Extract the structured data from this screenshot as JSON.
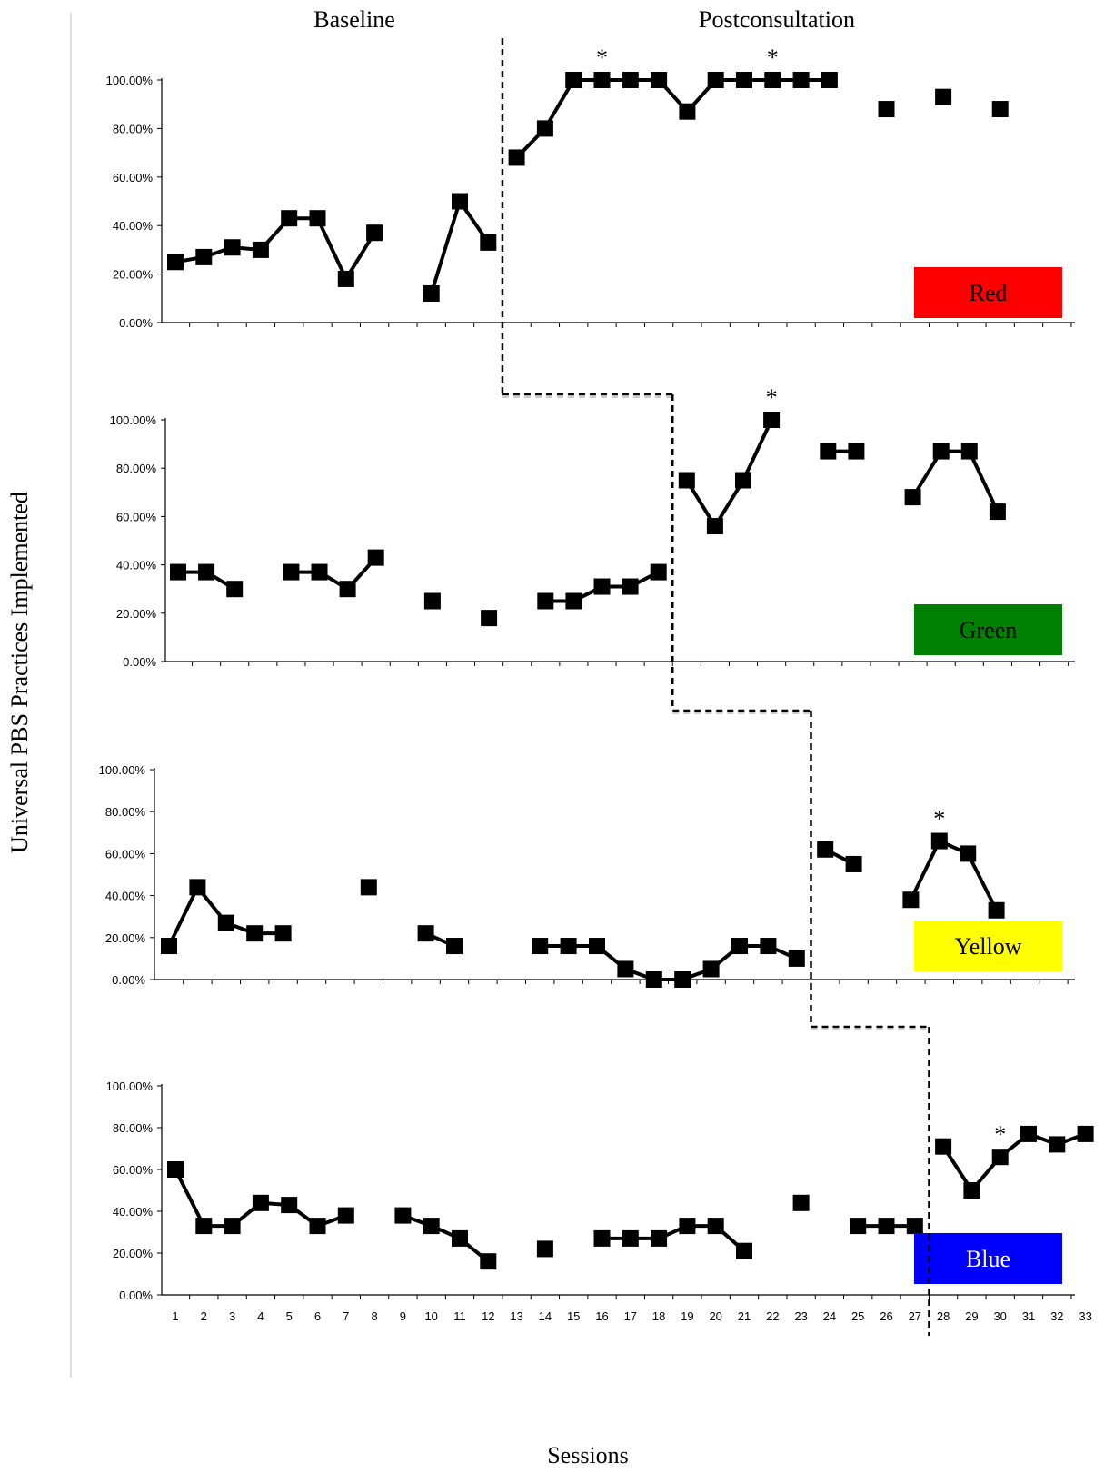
{
  "headings": {
    "baseline": "Baseline",
    "post": "Postconsultation"
  },
  "ylabel": "Universal PBS Practices Implemented",
  "xlabel": "Sessions",
  "yticks": [
    "0.00%",
    "20.00%",
    "40.00%",
    "60.00%",
    "80.00%",
    "100.00%"
  ],
  "xticks": [
    "1",
    "2",
    "3",
    "4",
    "5",
    "6",
    "7",
    "8",
    "9",
    "10",
    "11",
    "12",
    "13",
    "14",
    "15",
    "16",
    "17",
    "18",
    "19",
    "20",
    "21",
    "22",
    "23",
    "24",
    "25",
    "26",
    "27",
    "28",
    "29",
    "30",
    "31",
    "32",
    "33"
  ],
  "colors": {
    "Red": "#ff0000",
    "Green": "#008000",
    "Yellow": "#ffff00",
    "Blue": "#0000ff"
  },
  "chart_data": {
    "type": "line",
    "x_label": "Sessions",
    "y_label": "Universal PBS Practices Implemented",
    "ylim": [
      0,
      100
    ],
    "xlim": [
      1,
      33
    ],
    "series": [
      {
        "name": "Red",
        "phase_change_after_session": 12,
        "segments": [
          [
            [
              1,
              25
            ],
            [
              2,
              27
            ],
            [
              3,
              31
            ],
            [
              4,
              30
            ],
            [
              5,
              43
            ],
            [
              6,
              43
            ],
            [
              7,
              18
            ],
            [
              8,
              37
            ]
          ],
          [
            [
              10,
              12
            ],
            [
              11,
              50
            ],
            [
              12,
              33
            ]
          ],
          [
            [
              13,
              68
            ],
            [
              14,
              80
            ],
            [
              15,
              100
            ],
            [
              16,
              100
            ],
            [
              17,
              100
            ],
            [
              18,
              100
            ],
            [
              19,
              87
            ],
            [
              20,
              100
            ],
            [
              21,
              100
            ],
            [
              22,
              100
            ],
            [
              23,
              100
            ],
            [
              24,
              100
            ]
          ],
          [
            [
              26,
              88
            ]
          ],
          [
            [
              28,
              93
            ]
          ],
          [
            [
              30,
              88
            ]
          ]
        ],
        "starred_sessions": [
          16,
          22
        ]
      },
      {
        "name": "Green",
        "phase_change_after_session": 18,
        "segments": [
          [
            [
              1,
              37
            ],
            [
              2,
              37
            ],
            [
              3,
              30
            ]
          ],
          [
            [
              5,
              37
            ],
            [
              6,
              37
            ],
            [
              7,
              30
            ],
            [
              8,
              43
            ]
          ],
          [
            [
              10,
              25
            ]
          ],
          [
            [
              12,
              18
            ]
          ],
          [
            [
              14,
              25
            ],
            [
              15,
              25
            ],
            [
              16,
              31
            ],
            [
              17,
              31
            ],
            [
              18,
              37
            ]
          ],
          [
            [
              19,
              75
            ],
            [
              20,
              56
            ],
            [
              21,
              75
            ],
            [
              22,
              100
            ]
          ],
          [
            [
              24,
              87
            ],
            [
              25,
              87
            ]
          ],
          [
            [
              27,
              68
            ],
            [
              28,
              87
            ],
            [
              29,
              87
            ],
            [
              30,
              62
            ]
          ]
        ],
        "starred_sessions": [
          22
        ]
      },
      {
        "name": "Yellow",
        "phase_change_after_session": 23,
        "segments": [
          [
            [
              1,
              16
            ],
            [
              2,
              44
            ],
            [
              3,
              27
            ],
            [
              4,
              22
            ],
            [
              5,
              22
            ]
          ],
          [
            [
              8,
              44
            ]
          ],
          [
            [
              10,
              22
            ],
            [
              11,
              16
            ]
          ],
          [
            [
              14,
              16
            ],
            [
              15,
              16
            ],
            [
              16,
              16
            ],
            [
              17,
              5
            ],
            [
              18,
              0
            ],
            [
              19,
              0
            ],
            [
              20,
              5
            ],
            [
              21,
              16
            ],
            [
              22,
              16
            ],
            [
              23,
              10
            ]
          ],
          [
            [
              24,
              62
            ],
            [
              25,
              55
            ]
          ],
          [
            [
              27,
              38
            ],
            [
              28,
              66
            ],
            [
              29,
              60
            ],
            [
              30,
              33
            ]
          ]
        ],
        "starred_sessions": [
          28
        ]
      },
      {
        "name": "Blue",
        "phase_change_after_session": 27,
        "segments": [
          [
            [
              1,
              60
            ],
            [
              2,
              33
            ],
            [
              3,
              33
            ],
            [
              4,
              44
            ],
            [
              5,
              43
            ],
            [
              6,
              33
            ],
            [
              7,
              38
            ]
          ],
          [
            [
              9,
              38
            ],
            [
              10,
              33
            ],
            [
              11,
              27
            ],
            [
              12,
              16
            ]
          ],
          [
            [
              14,
              22
            ]
          ],
          [
            [
              16,
              27
            ],
            [
              17,
              27
            ],
            [
              18,
              27
            ],
            [
              19,
              33
            ],
            [
              20,
              33
            ],
            [
              21,
              21
            ]
          ],
          [
            [
              23,
              44
            ]
          ],
          [
            [
              25,
              33
            ],
            [
              26,
              33
            ],
            [
              27,
              33
            ]
          ],
          [
            [
              28,
              71
            ],
            [
              29,
              50
            ],
            [
              30,
              66
            ],
            [
              31,
              77
            ],
            [
              32,
              72
            ],
            [
              33,
              77
            ]
          ]
        ],
        "starred_sessions": [
          30
        ]
      }
    ]
  }
}
